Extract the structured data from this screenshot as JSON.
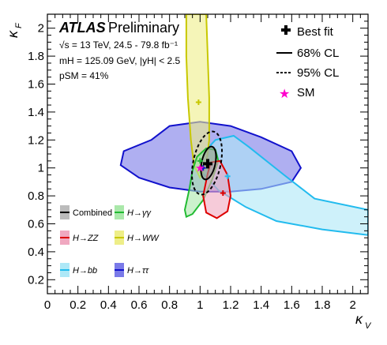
{
  "header": {
    "atlas": "ATLAS",
    "preliminary": "Preliminary",
    "line1": "√s = 13 TeV, 24.5 - 79.8 fb⁻¹",
    "line2": "mH = 125.09 GeV, |yH| < 2.5",
    "line3": "pSM = 41%"
  },
  "legend": {
    "best_fit": "Best fit",
    "cl68": "68% CL",
    "cl95": "95% CL",
    "sm": "SM"
  },
  "channel_legend": [
    {
      "name": "combined",
      "label": "Combined",
      "color": "#000000"
    },
    {
      "name": "hgg",
      "label": "H→γγ",
      "color": "#22bb33"
    },
    {
      "name": "hzz",
      "label": "H→ZZ",
      "color": "#dd0000"
    },
    {
      "name": "hww",
      "label": "H→WW",
      "color": "#c8c800"
    },
    {
      "name": "hbb",
      "label": "H→bb",
      "color": "#22bbee"
    },
    {
      "name": "htautau",
      "label": "H→ττ",
      "color": "#1111cc"
    }
  ],
  "chart_data": {
    "type": "scatter",
    "xlabel": "κV",
    "ylabel": "κF",
    "xlim": [
      0,
      2.1
    ],
    "ylim": [
      0.1,
      2.1
    ],
    "x_ticks": [
      0,
      0.2,
      0.4,
      0.6,
      0.8,
      1,
      1.2,
      1.4,
      1.6,
      1.8,
      2
    ],
    "y_ticks": [
      0.2,
      0.4,
      0.6,
      0.8,
      1,
      1.2,
      1.4,
      1.6,
      1.8,
      2
    ],
    "sm_point": {
      "x": 1.0,
      "y": 1.0
    },
    "best_fit": {
      "name": "Combined",
      "x": 1.05,
      "y": 1.03
    },
    "channel_best_fits": [
      {
        "name": "H→γγ",
        "x": 1.0,
        "y": 1.05,
        "color": "#22bb33"
      },
      {
        "name": "H→ZZ",
        "x": 1.15,
        "y": 0.82,
        "color": "#dd0000"
      },
      {
        "name": "H→WW",
        "x": 0.99,
        "y": 1.47,
        "color": "#c8c800"
      },
      {
        "name": "H→bb",
        "x": 1.18,
        "y": 0.94,
        "color": "#22bbee"
      },
      {
        "name": "H→ττ",
        "x": 1.02,
        "y": 1.0,
        "color": "#1111cc"
      }
    ],
    "contours": [
      {
        "name": "H→ττ",
        "color": "#1111cc",
        "fill": "#7a7ae8",
        "points": [
          [
            0.68,
            1.2
          ],
          [
            0.8,
            1.3
          ],
          [
            1.0,
            1.33
          ],
          [
            1.2,
            1.3
          ],
          [
            1.4,
            1.22
          ],
          [
            1.6,
            1.12
          ],
          [
            1.66,
            1.0
          ],
          [
            1.6,
            0.9
          ],
          [
            1.4,
            0.85
          ],
          [
            1.2,
            0.83
          ],
          [
            1.0,
            0.83
          ],
          [
            0.8,
            0.86
          ],
          [
            0.6,
            0.93
          ],
          [
            0.48,
            1.02
          ],
          [
            0.5,
            1.12
          ],
          [
            0.68,
            1.2
          ]
        ]
      },
      {
        "name": "H→bb",
        "color": "#22bbee",
        "fill": "#aee8f7",
        "points": [
          [
            1.0,
            1.08
          ],
          [
            1.1,
            1.2
          ],
          [
            1.22,
            1.23
          ],
          [
            1.32,
            1.15
          ],
          [
            1.55,
            0.95
          ],
          [
            1.75,
            0.78
          ],
          [
            2.1,
            0.7
          ],
          [
            2.1,
            0.52
          ],
          [
            1.8,
            0.56
          ],
          [
            1.5,
            0.62
          ],
          [
            1.3,
            0.72
          ],
          [
            1.12,
            0.84
          ],
          [
            1.02,
            0.96
          ],
          [
            1.0,
            1.08
          ]
        ]
      },
      {
        "name": "H→WW",
        "color": "#c8c800",
        "fill": "#eeee88",
        "points": [
          [
            0.91,
            2.1
          ],
          [
            1.04,
            2.1
          ],
          [
            1.05,
            1.8
          ],
          [
            1.06,
            1.5
          ],
          [
            1.06,
            1.2
          ],
          [
            1.04,
            1.02
          ],
          [
            1.0,
            0.93
          ],
          [
            0.96,
            1.02
          ],
          [
            0.94,
            1.2
          ],
          [
            0.92,
            1.5
          ],
          [
            0.91,
            1.8
          ],
          [
            0.91,
            2.1
          ]
        ]
      },
      {
        "name": "H→γγ",
        "color": "#22bb33",
        "fill": "#aae8aa",
        "points": [
          [
            0.95,
            0.98
          ],
          [
            0.98,
            1.08
          ],
          [
            1.04,
            1.14
          ],
          [
            1.1,
            1.13
          ],
          [
            1.12,
            1.05
          ],
          [
            1.08,
            0.92
          ],
          [
            1.02,
            0.77
          ],
          [
            0.95,
            0.67
          ],
          [
            0.91,
            0.65
          ],
          [
            0.9,
            0.7
          ],
          [
            0.93,
            0.85
          ],
          [
            0.95,
            0.98
          ]
        ]
      },
      {
        "name": "H→ZZ",
        "color": "#dd0000",
        "fill": "#f0a8c0",
        "points": [
          [
            1.05,
            0.96
          ],
          [
            1.07,
            1.04
          ],
          [
            1.13,
            1.05
          ],
          [
            1.18,
            0.95
          ],
          [
            1.2,
            0.8
          ],
          [
            1.18,
            0.69
          ],
          [
            1.11,
            0.64
          ],
          [
            1.04,
            0.68
          ],
          [
            1.02,
            0.8
          ],
          [
            1.05,
            0.96
          ]
        ]
      }
    ],
    "combined_68": {
      "cx": 1.055,
      "cy": 1.035,
      "rx": 0.045,
      "ry": 0.12
    },
    "combined_95": {
      "cx": 1.045,
      "cy": 1.035,
      "rx": 0.09,
      "ry": 0.23
    }
  }
}
